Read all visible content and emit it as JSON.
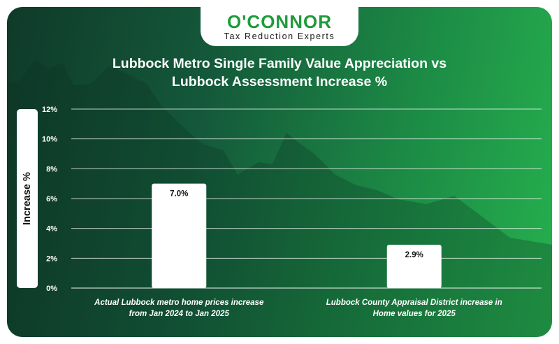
{
  "brand": {
    "name": "O'CONNOR",
    "tagline": "Tax Reduction Experts",
    "accent": "#1f9a3c"
  },
  "chart_data": {
    "type": "bar",
    "title_lines": [
      "Lubbock Metro Single Family Value Appreciation vs",
      "Lubbock Assessment Increase %"
    ],
    "ylabel": "Increase %",
    "ylim": [
      0,
      12
    ],
    "yticks": [
      0,
      2,
      4,
      6,
      8,
      10,
      12
    ],
    "ytick_labels": [
      "0%",
      "2%",
      "4%",
      "6%",
      "8%",
      "10%",
      "12%"
    ],
    "grid": true,
    "categories": [
      [
        "Actual Lubbock metro home prices increase",
        "from Jan 2024 to Jan 2025"
      ],
      [
        "Lubbock County Appraisal District increase in",
        "Home values for 2025"
      ]
    ],
    "values": [
      7.0,
      2.9
    ],
    "value_labels": [
      "7.0%",
      "2.9%"
    ],
    "bar_color": "#ffffff"
  }
}
